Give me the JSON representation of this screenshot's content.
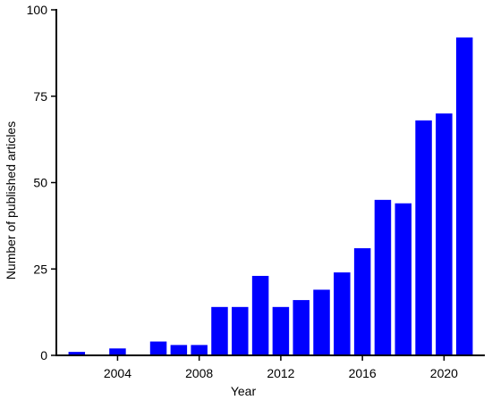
{
  "chart_data": {
    "type": "bar",
    "title": "",
    "xlabel": "Year",
    "ylabel": "Number of published articles",
    "x": [
      2002,
      2003,
      2004,
      2005,
      2006,
      2007,
      2008,
      2009,
      2010,
      2011,
      2012,
      2013,
      2014,
      2015,
      2016,
      2017,
      2018,
      2019,
      2020,
      2021
    ],
    "values": [
      1,
      0,
      2,
      0,
      4,
      3,
      3,
      14,
      14,
      23,
      14,
      16,
      19,
      24,
      31,
      45,
      44,
      68,
      70,
      92
    ],
    "xlim": [
      2001,
      2022
    ],
    "ylim": [
      0,
      100
    ],
    "x_ticks": [
      2004,
      2008,
      2012,
      2016,
      2020
    ],
    "y_ticks": [
      0,
      25,
      50,
      75,
      100
    ],
    "bar_color": "#0000ff",
    "grid": false,
    "legend": "none"
  }
}
